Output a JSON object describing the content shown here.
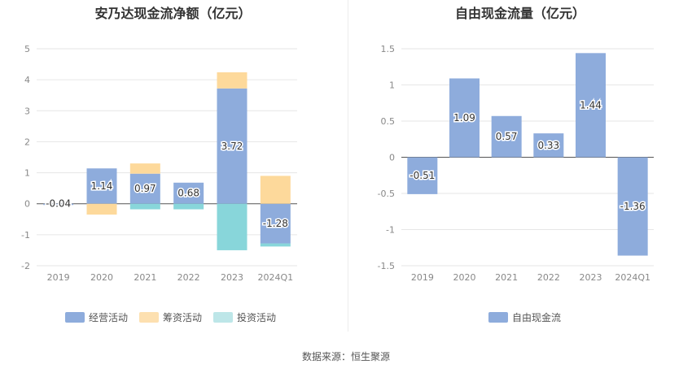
{
  "chart_data": [
    {
      "type": "bar",
      "stacked": true,
      "title": "安乃达现金流净额（亿元）",
      "categories": [
        "2019",
        "2020",
        "2021",
        "2022",
        "2023",
        "2024Q1"
      ],
      "ylim": [
        -2,
        5
      ],
      "yticks": [
        -2,
        -1,
        0,
        1,
        2,
        3,
        4,
        5
      ],
      "series": [
        {
          "name": "经营活动",
          "color": "#8eacdc",
          "values": [
            -0.04,
            1.14,
            0.97,
            0.68,
            3.72,
            -1.28
          ]
        },
        {
          "name": "筹资活动",
          "color": "#fdd99b",
          "values": [
            0.0,
            -0.35,
            0.33,
            0.0,
            0.52,
            0.9
          ]
        },
        {
          "name": "投资活动",
          "color": "#88d6da",
          "values": [
            0.0,
            0.0,
            -0.18,
            -0.18,
            -1.5,
            -0.1
          ]
        }
      ],
      "labels": [
        "-0.04",
        "1.14",
        "0.97",
        "0.68",
        "3.72",
        "-1.28"
      ]
    },
    {
      "type": "bar",
      "title": "自由现金流量（亿元）",
      "categories": [
        "2019",
        "2020",
        "2021",
        "2022",
        "2023",
        "2024Q1"
      ],
      "ylim": [
        -1.5,
        1.5
      ],
      "yticks": [
        -1.5,
        -1,
        -0.5,
        0,
        0.5,
        1,
        1.5
      ],
      "series": [
        {
          "name": "自由现金流",
          "color": "#8eacdc",
          "values": [
            -0.51,
            1.09,
            0.57,
            0.33,
            1.44,
            -1.36
          ]
        }
      ],
      "labels": [
        "-0.51",
        "1.09",
        "0.57",
        "0.33",
        "1.44",
        "-1.36"
      ]
    }
  ],
  "source": "数据来源：恒生聚源"
}
